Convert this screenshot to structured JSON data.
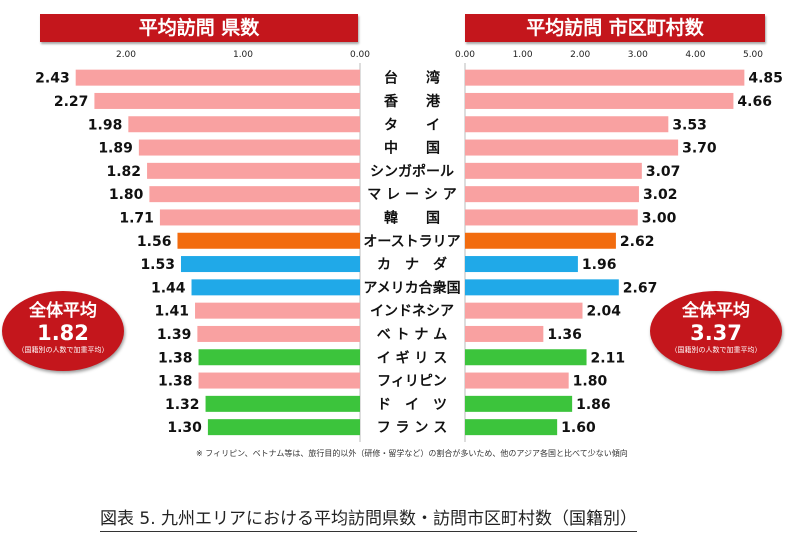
{
  "colors": {
    "pink": "#f9a1a1",
    "orange": "#f26c0f",
    "blue": "#20a9e8",
    "green": "#3cc43c",
    "red": "#c4161c"
  },
  "chart_data": [
    {
      "type": "bar",
      "title": "平均訪問 県数",
      "orientation": "horizontal",
      "direction": "right-to-left",
      "xlim": [
        0,
        2.5
      ],
      "ticks": [
        "2.00",
        "1.00",
        "0.00"
      ],
      "tick_values": [
        2,
        1,
        0
      ],
      "categories": [
        "台湾",
        "香港",
        "タイ",
        "中国",
        "シンガポール",
        "マレーシア",
        "韓国",
        "オーストラリア",
        "カナダ",
        "アメリカ合衆国",
        "インドネシア",
        "ベトナム",
        "イギリス",
        "フィリピン",
        "ドイツ",
        "フランス"
      ],
      "values": [
        2.43,
        2.27,
        1.98,
        1.89,
        1.82,
        1.8,
        1.71,
        1.56,
        1.53,
        1.44,
        1.41,
        1.39,
        1.38,
        1.38,
        1.32,
        1.3
      ],
      "bar_colors": [
        "pink",
        "pink",
        "pink",
        "pink",
        "pink",
        "pink",
        "pink",
        "orange",
        "blue",
        "blue",
        "pink",
        "pink",
        "green",
        "pink",
        "green",
        "green"
      ],
      "average": {
        "title": "全体平均",
        "value": "1.82",
        "note": "（国籍別の人数で加重平均）"
      }
    },
    {
      "type": "bar",
      "title": "平均訪問 市区町村数",
      "orientation": "horizontal",
      "direction": "left-to-right",
      "xlim": [
        0,
        5.1
      ],
      "ticks": [
        "0.00",
        "1.00",
        "2.00",
        "3.00",
        "4.00",
        "5.00"
      ],
      "tick_values": [
        0,
        1,
        2,
        3,
        4,
        5
      ],
      "categories": [
        "台湾",
        "香港",
        "タイ",
        "中国",
        "シンガポール",
        "マレーシア",
        "韓国",
        "オーストラリア",
        "カナダ",
        "アメリカ合衆国",
        "インドネシア",
        "ベトナム",
        "イギリス",
        "フィリピン",
        "ドイツ",
        "フランス"
      ],
      "values": [
        4.85,
        4.66,
        3.53,
        3.7,
        3.07,
        3.02,
        3.0,
        2.62,
        1.96,
        2.67,
        2.04,
        1.36,
        2.11,
        1.8,
        1.86,
        1.6
      ],
      "bar_colors": [
        "pink",
        "pink",
        "pink",
        "pink",
        "pink",
        "pink",
        "pink",
        "orange",
        "blue",
        "blue",
        "pink",
        "pink",
        "green",
        "pink",
        "green",
        "green"
      ],
      "average": {
        "title": "全体平均",
        "value": "3.37",
        "note": "（国籍別の人数で加重平均）"
      }
    }
  ],
  "category_labels": [
    "台　　湾",
    "香　　港",
    "タ　　イ",
    "中　　国",
    "シンガポール",
    "マ レ ー シ ア",
    "韓　　国",
    "オーストラリア",
    "カ　ナ　ダ",
    "アメリカ合衆国",
    "インドネシア",
    "ベ ト ナ ム",
    "イ ギ リ ス",
    "フィリピン",
    "ド　イ　ツ",
    "フ ラ ン ス"
  ],
  "footnote": "※ フィリピン、ベトナム等は、旅行目的以外（研修・留学など）の割合が多いため、他のアジア各国と比べて少ない傾向",
  "caption": "図表 5.  九州エリアにおける平均訪問県数・訪問市区町村数（国籍別）"
}
